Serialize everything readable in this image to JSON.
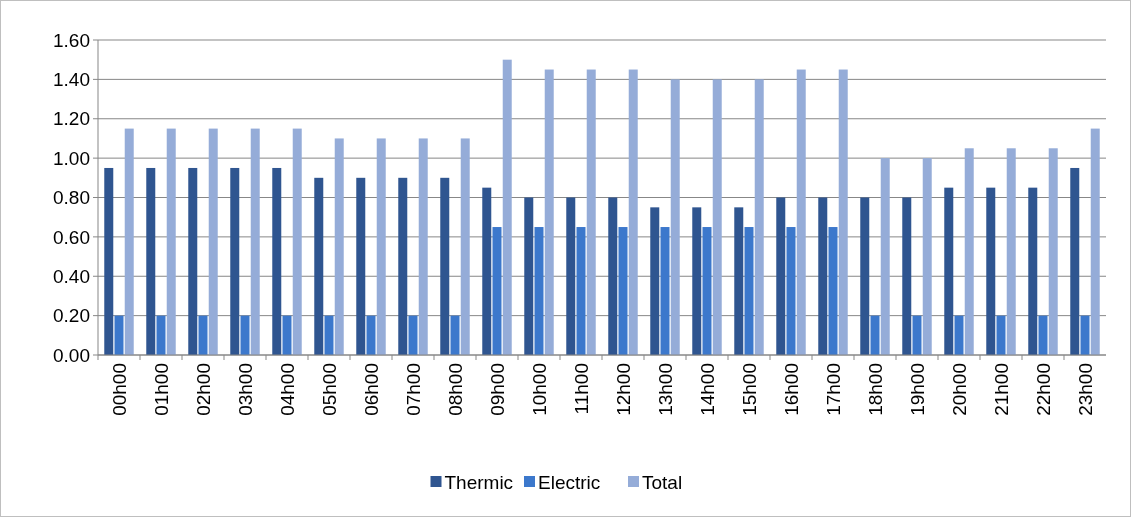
{
  "chart_data": {
    "type": "bar",
    "categories": [
      "00h00",
      "01h00",
      "02h00",
      "03h00",
      "04h00",
      "05h00",
      "06h00",
      "07h00",
      "08h00",
      "09h00",
      "10h00",
      "11h00",
      "12h00",
      "13h00",
      "14h00",
      "15h00",
      "16h00",
      "17h00",
      "18h00",
      "19h00",
      "20h00",
      "21h00",
      "22h00",
      "23h00"
    ],
    "series": [
      {
        "name": "Thermic",
        "color": "#2f5590",
        "values": [
          0.95,
          0.95,
          0.95,
          0.95,
          0.95,
          0.9,
          0.9,
          0.9,
          0.9,
          0.85,
          0.8,
          0.8,
          0.8,
          0.75,
          0.75,
          0.75,
          0.8,
          0.8,
          0.8,
          0.8,
          0.85,
          0.85,
          0.85,
          0.95
        ]
      },
      {
        "name": "Electric",
        "color": "#3c78cc",
        "values": [
          0.2,
          0.2,
          0.2,
          0.2,
          0.2,
          0.2,
          0.2,
          0.2,
          0.2,
          0.65,
          0.65,
          0.65,
          0.65,
          0.65,
          0.65,
          0.65,
          0.65,
          0.65,
          0.2,
          0.2,
          0.2,
          0.2,
          0.2,
          0.2
        ]
      },
      {
        "name": "Total",
        "color": "#95acd8",
        "values": [
          1.15,
          1.15,
          1.15,
          1.15,
          1.15,
          1.1,
          1.1,
          1.1,
          1.1,
          1.5,
          1.45,
          1.45,
          1.45,
          1.4,
          1.4,
          1.4,
          1.45,
          1.45,
          1.0,
          1.0,
          1.05,
          1.05,
          1.05,
          1.15
        ]
      }
    ],
    "ylim": [
      0,
      1.6
    ],
    "yticks": [
      {
        "value": 0,
        "label": "0.00"
      },
      {
        "value": 0.2,
        "label": "0.20"
      },
      {
        "value": 0.4,
        "label": "0.40"
      },
      {
        "value": 0.6,
        "label": "0.60"
      },
      {
        "value": 0.8,
        "label": "0.80"
      },
      {
        "value": 1.0,
        "label": "1.00"
      },
      {
        "value": 1.2,
        "label": "1.20"
      },
      {
        "value": 1.4,
        "label": "1.40"
      },
      {
        "value": 1.6,
        "label": "1.60"
      }
    ],
    "grid": "y",
    "legend": "bottom"
  }
}
